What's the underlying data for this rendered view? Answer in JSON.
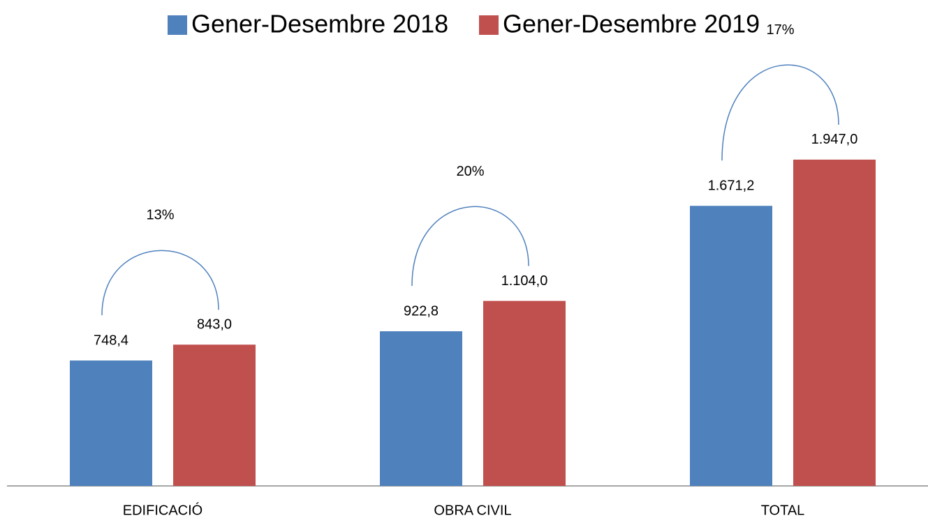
{
  "chart_data": {
    "type": "bar",
    "categories": [
      "EDIFICACIÓ",
      "OBRA CIVIL",
      "TOTAL"
    ],
    "series": [
      {
        "name": "Gener-Desembre 2018",
        "color": "#4f81bd",
        "values": [
          748.4,
          922.8,
          1671.2
        ],
        "value_labels": [
          "748,4",
          "922,8",
          "1.671,2"
        ]
      },
      {
        "name": "Gener-Desembre 2019",
        "color": "#c0504d",
        "values": [
          843.0,
          1104.0,
          1947.0
        ],
        "value_labels": [
          "843,0",
          "1.104,0",
          "1.947,0"
        ]
      }
    ],
    "annotations": [
      "13%",
      "20%",
      "17%"
    ],
    "legend": "top"
  }
}
